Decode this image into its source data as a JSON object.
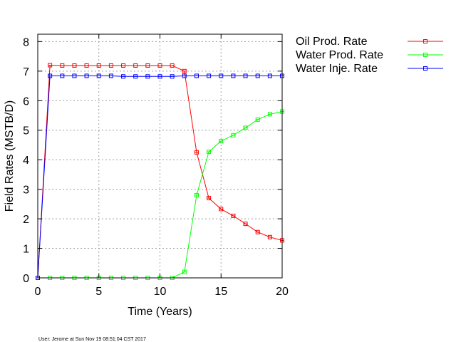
{
  "chart_data": {
    "type": "line",
    "xlabel": "Time (Years)",
    "ylabel": "Field Rates (MSTB/D)",
    "xlim": [
      0,
      20
    ],
    "ylim": [
      0,
      8.25
    ],
    "x_ticks": [
      0,
      5,
      10,
      15,
      20
    ],
    "y_ticks": [
      0,
      1,
      2,
      3,
      4,
      5,
      6,
      7,
      8
    ],
    "grid": true,
    "legend_position": "right, outside plot",
    "x": [
      0,
      1,
      2,
      3,
      4,
      5,
      6,
      7,
      8,
      9,
      10,
      11,
      12,
      13,
      14,
      15,
      16,
      17,
      18,
      19,
      20
    ],
    "series": [
      {
        "name": "Oil Prod. Rate",
        "color": "#ff0000",
        "values": [
          0,
          7.2,
          7.19,
          7.19,
          7.19,
          7.19,
          7.19,
          7.19,
          7.19,
          7.19,
          7.19,
          7.19,
          7.0,
          4.25,
          2.7,
          2.33,
          2.1,
          1.83,
          1.55,
          1.38,
          1.27
        ]
      },
      {
        "name": "Water Prod. Rate",
        "color": "#00ff00",
        "values": [
          0,
          0,
          0,
          0,
          0,
          0,
          0,
          0,
          0,
          0,
          0,
          0,
          0.2,
          2.8,
          4.27,
          4.63,
          4.83,
          5.08,
          5.36,
          5.54,
          5.63
        ]
      },
      {
        "name": "Water Inje. Rate",
        "color": "#0000ff",
        "values": [
          0,
          6.84,
          6.84,
          6.84,
          6.84,
          6.84,
          6.84,
          6.82,
          6.82,
          6.82,
          6.82,
          6.82,
          6.84,
          6.84,
          6.84,
          6.84,
          6.84,
          6.84,
          6.84,
          6.84,
          6.84
        ]
      }
    ]
  },
  "footer": "User: Jerome at Sun Nov 19 08:51:04 CST 2017"
}
